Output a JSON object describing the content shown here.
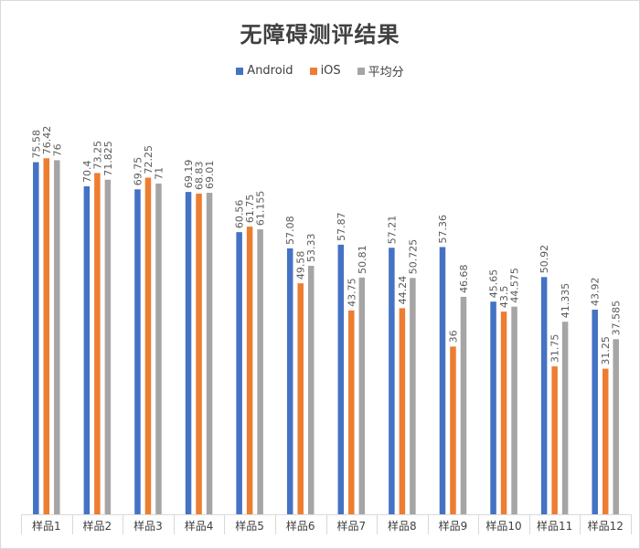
{
  "chart_data": {
    "type": "bar",
    "title": "无障碍测评结果",
    "xlabel": "",
    "ylabel": "",
    "ylim": [
      0,
      90
    ],
    "grid": false,
    "legend_position": "top",
    "categories": [
      "样品1",
      "样品2",
      "样品3",
      "样品4",
      "样品5",
      "样品6",
      "样品7",
      "样品8",
      "样品9",
      "样品10",
      "样品11",
      "样品12"
    ],
    "series": [
      {
        "name": "Android",
        "color": "#4472c4",
        "values": [
          75.58,
          70.4,
          69.75,
          69.19,
          60.56,
          57.08,
          57.87,
          57.21,
          57.36,
          45.65,
          50.92,
          43.92
        ],
        "labels": [
          "75.58",
          "70.4",
          "69.75",
          "69.19",
          "60.56",
          "57.08",
          "57.87",
          "57.21",
          "57.36",
          "45.65",
          "50.92",
          "43.92"
        ]
      },
      {
        "name": "iOS",
        "color": "#ed7d31",
        "values": [
          76.42,
          73.25,
          72.25,
          68.83,
          61.75,
          49.58,
          43.75,
          44.24,
          36,
          43.5,
          31.75,
          31.25
        ],
        "labels": [
          "76.42",
          "73.25",
          "72.25",
          "68.83",
          "61.75",
          "49.58",
          "43.75",
          "44.24",
          "36",
          "43.5",
          "31.75",
          "31.25"
        ]
      },
      {
        "name": "平均分",
        "color": "#a5a5a5",
        "values": [
          76,
          71.825,
          71,
          69.01,
          61.155,
          53.33,
          50.81,
          50.725,
          46.68,
          44.575,
          41.335,
          37.585
        ],
        "labels": [
          "76",
          "71.825",
          "71",
          "69.01",
          "61.155",
          "53.33",
          "50.81",
          "50.725",
          "46.68",
          "44.575",
          "41.335",
          "37.585"
        ]
      }
    ]
  }
}
